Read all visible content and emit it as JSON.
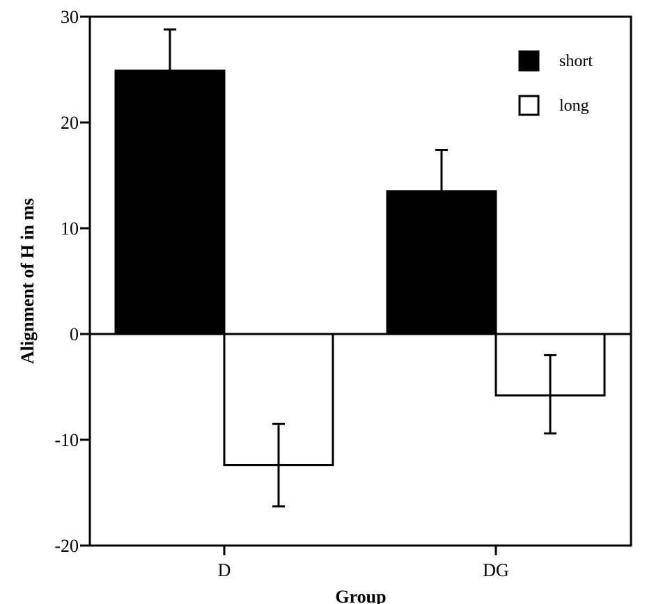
{
  "chart_data": {
    "type": "bar",
    "title": "",
    "xlabel": "Group",
    "ylabel": "Alignment of H in ms",
    "categories": [
      "D",
      "DG"
    ],
    "series": [
      {
        "name": "short",
        "fill": "#000000",
        "values": [
          24.9,
          13.5
        ],
        "error_upper": [
          28.8,
          17.4
        ],
        "error_lower": [
          24.9,
          13.5
        ]
      },
      {
        "name": "long",
        "fill": "#ffffff",
        "values": [
          -12.4,
          -5.8
        ],
        "error_upper": [
          -8.5,
          -2.0
        ],
        "error_lower": [
          -16.3,
          -9.4
        ]
      }
    ],
    "ylim": [
      -20,
      30
    ],
    "yticks": [
      30,
      20,
      10,
      0,
      -10,
      -20
    ],
    "ytick_labels": [
      "30",
      "20",
      "10",
      "0",
      "-10",
      "-20"
    ],
    "legend": {
      "position": "top-right",
      "entries": [
        "short",
        "long"
      ]
    },
    "grid": false
  }
}
